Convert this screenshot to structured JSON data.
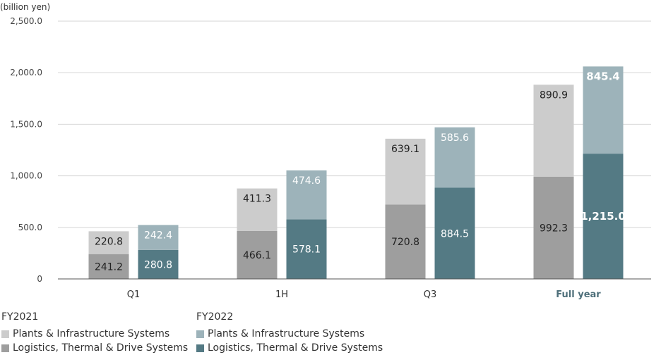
{
  "chart_data": {
    "type": "bar",
    "unit_label": "(billion yen)",
    "categories": [
      "Q1",
      "1H",
      "Q3",
      "Full year"
    ],
    "highlight_category": "Full year",
    "ylim": [
      0,
      2500
    ],
    "yticks": [
      0,
      500,
      1000,
      1500,
      2000,
      2500
    ],
    "ytick_labels": [
      "0",
      "500.0",
      "1,000.0",
      "1,500.0",
      "2,000.0",
      "2,500.0"
    ],
    "grid": true,
    "groups": [
      {
        "name": "FY2021",
        "series": [
          {
            "name": "Logistics, Thermal & Drive Systems",
            "color": "#9e9e9e",
            "values": [
              241.2,
              466.1,
              720.8,
              992.3
            ],
            "labels": [
              "241.2",
              "466.1",
              "720.8",
              "992.3"
            ]
          },
          {
            "name": "Plants & Infrastructure Systems",
            "color": "#cccccc",
            "values": [
              220.8,
              411.3,
              639.1,
              890.9
            ],
            "labels": [
              "220.8",
              "411.3",
              "639.1",
              "890.9"
            ]
          }
        ]
      },
      {
        "name": "FY2022",
        "series": [
          {
            "name": "Logistics, Thermal & Drive Systems",
            "color": "#547a84",
            "values": [
              280.8,
              578.1,
              884.5,
              1215.0
            ],
            "labels": [
              "280.8",
              "578.1",
              "884.5",
              "1,215.0"
            ]
          },
          {
            "name": "Plants & Infrastructure Systems",
            "color": "#9db3ba",
            "values": [
              242.4,
              474.6,
              585.6,
              845.4
            ],
            "labels": [
              "242.4",
              "474.6",
              "585.6",
              "845.4"
            ]
          }
        ]
      }
    ],
    "legend": {
      "FY2021": {
        "title": "FY2021",
        "items": [
          "Plants & Infrastructure Systems",
          "Logistics, Thermal & Drive Systems"
        ]
      },
      "FY2022": {
        "title": "FY2022",
        "items": [
          "Plants & Infrastructure Systems",
          "Logistics, Thermal & Drive Systems"
        ]
      }
    },
    "legend_placement": "bottom-left"
  }
}
